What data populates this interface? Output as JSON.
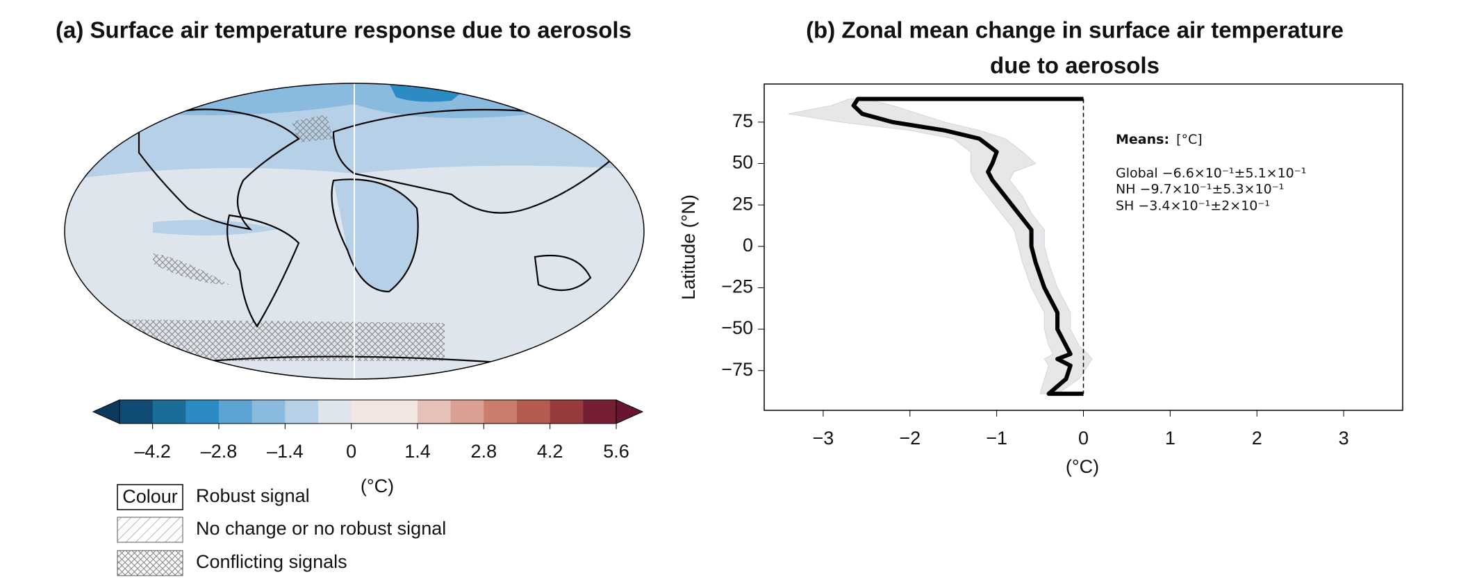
{
  "chart_data": [
    {
      "type": "map",
      "title": "(a) Surface air temperature response due to aerosols",
      "colorbar": {
        "clim": [
          -4.9,
          5.6
        ],
        "ticks": [
          {
            "value": -4.2,
            "label": "–4.2"
          },
          {
            "value": -2.8,
            "label": "–2.8"
          },
          {
            "value": -1.4,
            "label": "–1.4"
          },
          0,
          1.4,
          2.8,
          4.2,
          5.6
        ],
        "colors": [
          "#0f4b72",
          "#1c6c99",
          "#2d8bc3",
          "#5ba4d3",
          "#8bbadf",
          "#b5d0e7",
          "#dfe5ec",
          "#f2e6e3",
          "#f2e6e3",
          "#e6c1b8",
          "#d9a093",
          "#cb7d6b",
          "#b45c4f",
          "#963c3d",
          "#761f34"
        ],
        "under_color": "#0b3a5c",
        "over_color": "#6a1530",
        "label": "(°C)"
      },
      "legend": [
        {
          "swatch": "Colour",
          "label": "Robust signal"
        },
        {
          "label": "No change or no robust signal"
        },
        {
          "label": "Conflicting signals"
        }
      ]
    },
    {
      "type": "line",
      "title": [
        "(b) Zonal mean change in surface air temperature",
        "due to aerosols"
      ],
      "xlabel": "(°C)",
      "ylabel": "Latitude (°N)",
      "xlim": [
        -3.68,
        3.68
      ],
      "xticks": [
        {
          "value": -3,
          "label": "−3"
        },
        {
          "value": -2,
          "label": "−2"
        },
        {
          "value": -1,
          "label": "−1"
        },
        0,
        1,
        2,
        3
      ],
      "ylim": [
        -99,
        98
      ],
      "yticks": [
        75,
        50,
        25,
        0,
        {
          "value": -25,
          "label": "−25"
        },
        {
          "value": -50,
          "label": "−50"
        },
        {
          "value": -75,
          "label": "−75"
        }
      ],
      "color": "#000000",
      "band_color": "#e6e7e9",
      "y": [
        89,
        89,
        85,
        80,
        75,
        70,
        65,
        57,
        50,
        45,
        40,
        30,
        20,
        10,
        0,
        -10,
        -25,
        -40,
        -50,
        -60,
        -65,
        -68,
        -72,
        -80,
        -89,
        -89
      ],
      "values": [
        0,
        -2.6,
        -2.65,
        -2.55,
        -2.2,
        -1.6,
        -1.2,
        -1.0,
        -1.05,
        -1.1,
        -1.05,
        -0.9,
        -0.75,
        -0.6,
        -0.6,
        -0.55,
        -0.45,
        -0.3,
        -0.3,
        -0.2,
        -0.15,
        -0.3,
        -0.15,
        -0.2,
        -0.4,
        0
      ],
      "band_lower": [
        0,
        -2.7,
        -2.9,
        -3.4,
        -2.8,
        -2.0,
        -1.5,
        -1.3,
        -1.3,
        -1.3,
        -1.25,
        -1.1,
        -0.95,
        -0.8,
        -0.75,
        -0.7,
        -0.6,
        -0.45,
        -0.45,
        -0.4,
        -0.35,
        -0.45,
        -0.4,
        -0.45,
        -0.5,
        0
      ],
      "band_upper": [
        0,
        -2.5,
        -2.2,
        -1.9,
        -1.6,
        -1.2,
        -0.9,
        -0.7,
        -0.55,
        -0.8,
        -0.85,
        -0.7,
        -0.6,
        -0.45,
        -0.45,
        -0.4,
        -0.3,
        -0.15,
        -0.15,
        -0.05,
        0.05,
        0.1,
        0.05,
        -0.05,
        -0.3,
        0
      ],
      "means_title": "Means:",
      "means_unit": "[°C]",
      "means": [
        "Global −6.6×10⁻¹±5.1×10⁻¹",
        "NH −9.7×10⁻¹±5.3×10⁻¹",
        "SH −3.4×10⁻¹±2×10⁻¹"
      ]
    }
  ]
}
